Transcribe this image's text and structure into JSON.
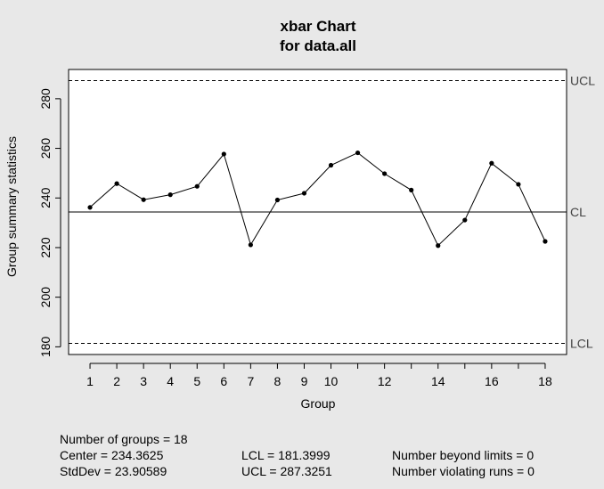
{
  "chart_data": {
    "type": "line",
    "title": "xbar Chart",
    "subtitle": "for data.all",
    "xlabel": "Group",
    "ylabel": "Group summary statistics",
    "x": [
      1,
      2,
      3,
      4,
      5,
      6,
      7,
      8,
      9,
      10,
      11,
      12,
      13,
      14,
      15,
      16,
      17,
      18
    ],
    "x_tick_labels": [
      "1",
      "2",
      "3",
      "4",
      "5",
      "6",
      "7",
      "8",
      "9",
      "10",
      "12",
      "14",
      "16",
      "18"
    ],
    "x_tick_values": [
      1,
      2,
      3,
      4,
      5,
      6,
      7,
      8,
      9,
      10,
      12,
      14,
      16,
      18
    ],
    "y_tick_labels": [
      "180",
      "200",
      "220",
      "240",
      "260",
      "280"
    ],
    "y_tick_values": [
      180,
      200,
      220,
      240,
      260,
      280
    ],
    "values": [
      236.2,
      245.8,
      239.3,
      241.3,
      244.7,
      257.7,
      221.1,
      239.2,
      241.9,
      253.2,
      258.2,
      249.8,
      243.2,
      220.8,
      231.1,
      254.0,
      245.5,
      222.5
    ],
    "xlim": [
      0.2,
      18.8
    ],
    "ylim": [
      176.9,
      291.8
    ],
    "center": 234.3625,
    "lcl": 181.3999,
    "ucl": 287.3251,
    "line_labels": {
      "ucl": "UCL",
      "cl": "CL",
      "lcl": "LCL"
    },
    "grid": false,
    "point_color": "#000000"
  },
  "stats": {
    "groups": "Number of groups = 18",
    "center": "Center = 234.3625",
    "stddev": "StdDev = 23.90589",
    "lcl": "LCL = 181.3999",
    "ucl": "UCL = 287.3251",
    "beyond": "Number beyond limits = 0",
    "violating": "Number violating runs = 0"
  }
}
